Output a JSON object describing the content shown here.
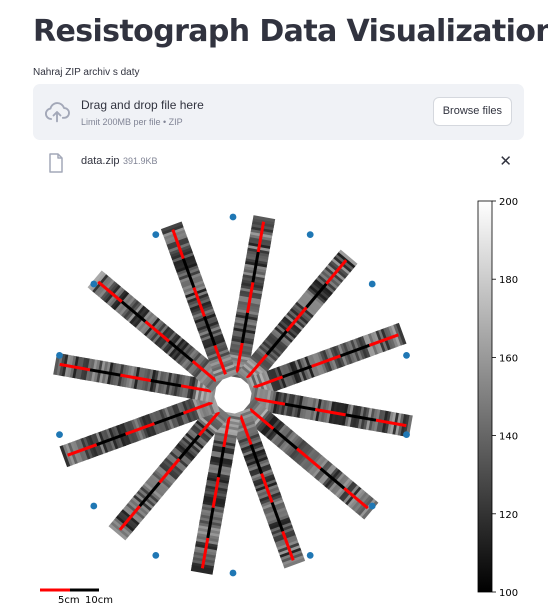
{
  "page": {
    "title": "Resistograph Data Visualization"
  },
  "uploader": {
    "label": "Nahraj ZIP archiv s daty",
    "drop_text": "Drag and drop file here",
    "limit_text": "Limit 200MB per file • ZIP",
    "browse_label": "Browse files",
    "icon": "cloud-upload-icon"
  },
  "file": {
    "name": "data.zip",
    "size": "391.9KB",
    "icon": "file-icon",
    "remove_icon": "close-icon",
    "remove_glyph": "✕"
  },
  "chart_data": {
    "type": "heatmap",
    "title": "",
    "colormap": "gray",
    "colorbar": {
      "min": 100,
      "max": 200,
      "ticks": [
        100,
        120,
        140,
        160,
        180,
        200
      ]
    },
    "scale_bar": {
      "labels": [
        "5cm",
        "10cm"
      ],
      "colors": [
        "#ff0000",
        "#000000"
      ]
    },
    "measurement_count": 12,
    "marker_count": 14,
    "marker_color": "#1f77b4",
    "profile_line_colors": [
      "#ff0000",
      "#000000"
    ]
  }
}
